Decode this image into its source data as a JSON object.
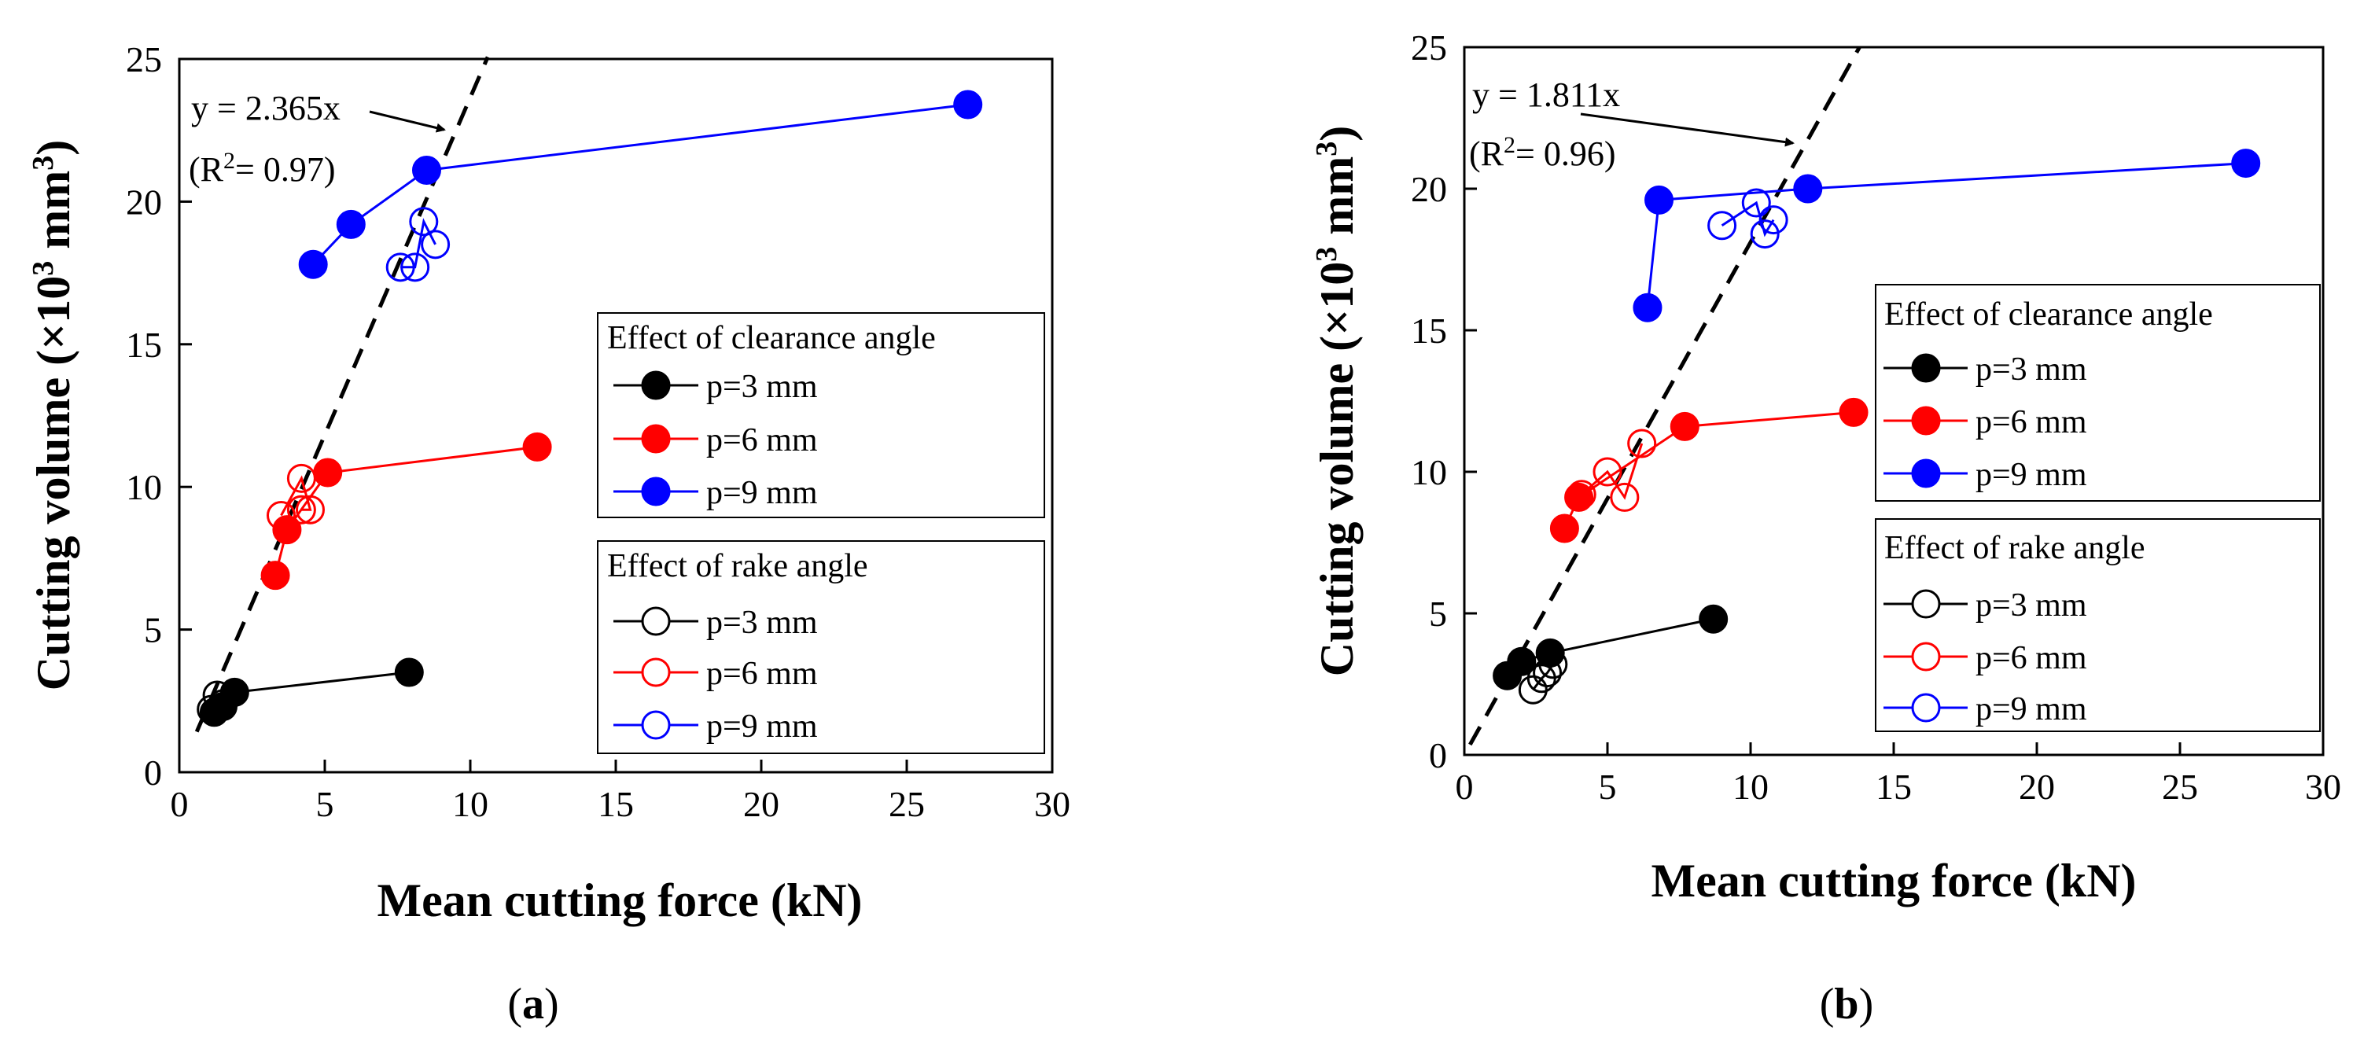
{
  "chart_data": [
    {
      "type": "scatter",
      "panel_label": "(a)",
      "panel_letter": "a",
      "xlabel": "Mean cutting force (kN)",
      "ylabel": "Cutting volume (×10³ mm³)",
      "ylabel_parts": {
        "main": "Cutting volume (×10",
        "sup1": "3",
        "mid": " mm",
        "sup2": "3",
        "end": ")"
      },
      "xlim": [
        0,
        30
      ],
      "ylim": [
        0,
        25
      ],
      "xticks": [
        0,
        5,
        10,
        15,
        20,
        25,
        30
      ],
      "yticks": [
        0,
        5,
        10,
        15,
        20,
        25
      ],
      "fit": {
        "slope": 2.365,
        "equation": "y = 2.365x",
        "r2_prefix": "(R",
        "r2_sup": "2",
        "r2_suffix": "= 0.97)",
        "x_range": [
          0.6,
          10.6
        ]
      },
      "legend_groups": [
        {
          "title": "Effect of clearance angle",
          "entries": [
            "p=3 mm",
            "p=6 mm",
            "p=9 mm"
          ]
        },
        {
          "title": "Effect of rake angle",
          "entries": [
            "p=3 mm",
            "p=6 mm",
            "p=9 mm"
          ]
        }
      ],
      "series": [
        {
          "name": "Clearance angle p=3 mm",
          "group": "clearance",
          "color": "#000000",
          "filled": true,
          "connected": true,
          "points": [
            [
              1.2,
              2.1
            ],
            [
              1.5,
              2.3
            ],
            [
              1.9,
              2.8
            ],
            [
              7.9,
              3.5
            ]
          ]
        },
        {
          "name": "Clearance angle p=6 mm",
          "group": "clearance",
          "color": "#ff0000",
          "filled": true,
          "connected": true,
          "points": [
            [
              3.3,
              6.9
            ],
            [
              3.7,
              8.5
            ],
            [
              5.1,
              10.5
            ],
            [
              12.3,
              11.4
            ]
          ]
        },
        {
          "name": "Clearance angle p=9 mm",
          "group": "clearance",
          "color": "#0000ff",
          "filled": true,
          "connected": true,
          "points": [
            [
              4.6,
              17.8
            ],
            [
              5.9,
              19.2
            ],
            [
              8.5,
              21.1
            ],
            [
              27.1,
              23.4
            ]
          ]
        },
        {
          "name": "Rake angle p=3 mm",
          "group": "rake",
          "color": "#000000",
          "filled": false,
          "connected": true,
          "points": [
            [
              1.1,
              2.2
            ],
            [
              1.3,
              2.7
            ],
            [
              1.5,
              2.4
            ]
          ]
        },
        {
          "name": "Rake angle p=6 mm",
          "group": "rake",
          "color": "#ff0000",
          "filled": false,
          "connected": true,
          "points": [
            [
              3.5,
              9.0
            ],
            [
              4.2,
              10.3
            ],
            [
              4.5,
              9.2
            ],
            [
              4.2,
              9.2
            ]
          ]
        },
        {
          "name": "Rake angle p=9 mm",
          "group": "rake",
          "color": "#0000ff",
          "filled": false,
          "connected": true,
          "points": [
            [
              7.6,
              17.7
            ],
            [
              8.1,
              17.7
            ],
            [
              8.4,
              19.3
            ],
            [
              8.8,
              18.5
            ]
          ]
        }
      ]
    },
    {
      "type": "scatter",
      "panel_label": "(b)",
      "panel_letter": "b",
      "xlabel": "Mean cutting force (kN)",
      "ylabel": "Cutting volume (×10³ mm³)",
      "ylabel_parts": {
        "main": "Cutting volume (×10",
        "sup1": "3",
        "mid": " mm",
        "sup2": "3",
        "end": ")"
      },
      "xlim": [
        0,
        30
      ],
      "ylim": [
        0,
        25
      ],
      "xticks": [
        0,
        5,
        10,
        15,
        20,
        25,
        30
      ],
      "yticks": [
        0,
        5,
        10,
        15,
        20,
        25
      ],
      "fit": {
        "slope": 1.811,
        "equation": "y = 1.811x",
        "r2_prefix": "(R",
        "r2_sup": "2",
        "r2_suffix": "= 0.96)",
        "x_range": [
          0.2,
          13.8
        ]
      },
      "legend_groups": [
        {
          "title": "Effect of clearance angle",
          "entries": [
            "p=3 mm",
            "p=6 mm",
            "p=9 mm"
          ]
        },
        {
          "title": "Effect of rake angle",
          "entries": [
            "p=3 mm",
            "p=6 mm",
            "p=9 mm"
          ]
        }
      ],
      "series": [
        {
          "name": "Clearance angle p=3 mm",
          "group": "clearance",
          "color": "#000000",
          "filled": true,
          "connected": true,
          "points": [
            [
              1.5,
              2.8
            ],
            [
              2.0,
              3.3
            ],
            [
              3.0,
              3.6
            ],
            [
              8.7,
              4.8
            ]
          ]
        },
        {
          "name": "Clearance angle p=6 mm",
          "group": "clearance",
          "color": "#ff0000",
          "filled": true,
          "connected": true,
          "points": [
            [
              3.5,
              8.0
            ],
            [
              4.0,
              9.1
            ],
            [
              7.7,
              11.6
            ],
            [
              13.6,
              12.1
            ]
          ]
        },
        {
          "name": "Clearance angle p=9 mm",
          "group": "clearance",
          "color": "#0000ff",
          "filled": true,
          "connected": true,
          "points": [
            [
              6.4,
              15.8
            ],
            [
              6.8,
              19.6
            ],
            [
              12.0,
              20.0
            ],
            [
              27.3,
              20.9
            ]
          ]
        },
        {
          "name": "Rake angle p=3 mm",
          "group": "rake",
          "color": "#000000",
          "filled": false,
          "connected": true,
          "points": [
            [
              2.4,
              2.3
            ],
            [
              2.7,
              2.7
            ],
            [
              2.9,
              2.9
            ],
            [
              3.1,
              3.2
            ]
          ]
        },
        {
          "name": "Rake angle p=6 mm",
          "group": "rake",
          "color": "#ff0000",
          "filled": false,
          "connected": true,
          "points": [
            [
              4.1,
              9.2
            ],
            [
              5.0,
              10.0
            ],
            [
              5.6,
              9.1
            ],
            [
              6.2,
              11.0
            ]
          ]
        },
        {
          "name": "Rake angle p=9 mm",
          "group": "rake",
          "color": "#0000ff",
          "filled": false,
          "connected": true,
          "points": [
            [
              9.0,
              18.7
            ],
            [
              10.2,
              19.5
            ],
            [
              10.5,
              18.4
            ],
            [
              10.8,
              18.9
            ]
          ]
        }
      ]
    }
  ]
}
